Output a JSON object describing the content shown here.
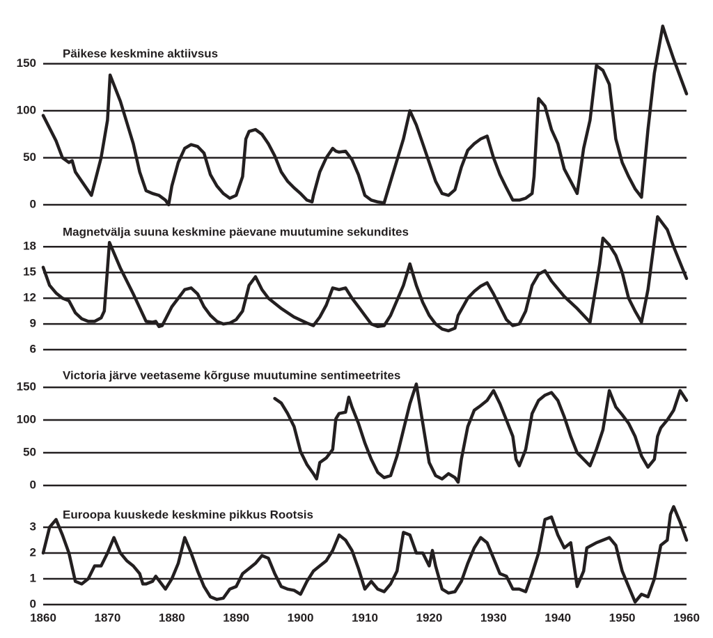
{
  "chart_data": [
    {
      "type": "line",
      "title": "Päikese keskmine aktiivsus",
      "color": "#231f20",
      "xlim": [
        1860,
        1960
      ],
      "ylim": [
        0,
        200
      ],
      "yticks": [
        0,
        50,
        100,
        150
      ],
      "grid": true,
      "x": [
        1860,
        1862,
        1863,
        1864,
        1864.5,
        1865,
        1866,
        1867,
        1867.5,
        1869,
        1870,
        1870.4,
        1872,
        1874,
        1875,
        1876,
        1877,
        1878,
        1879,
        1879.5,
        1880,
        1881,
        1882,
        1883,
        1884,
        1885,
        1886,
        1887,
        1888,
        1889,
        1890,
        1891,
        1891.5,
        1892,
        1893,
        1894,
        1895,
        1896,
        1897,
        1898,
        1899,
        1900,
        1901,
        1901.8,
        1902,
        1903,
        1904,
        1905,
        1905.5,
        1906,
        1907,
        1908,
        1909,
        1910,
        1911,
        1912,
        1913,
        1914,
        1916,
        1917,
        1918,
        1919,
        1920,
        1921,
        1922,
        1923,
        1924,
        1925,
        1926,
        1927,
        1928,
        1929,
        1930,
        1931,
        1932,
        1933,
        1934,
        1935,
        1936,
        1936.3,
        1937,
        1938,
        1939,
        1940,
        1941,
        1942,
        1943,
        1944,
        1945,
        1946,
        1947,
        1948,
        1949,
        1950,
        1951,
        1952,
        1953,
        1954,
        1955,
        1956.3,
        1957,
        1958,
        1960
      ],
      "values": [
        95,
        68,
        50,
        45,
        47,
        35,
        25,
        15,
        10,
        50,
        90,
        138,
        110,
        65,
        35,
        15,
        12,
        10,
        5,
        0,
        20,
        45,
        60,
        64,
        62,
        55,
        32,
        20,
        12,
        7,
        10,
        30,
        70,
        78,
        80,
        75,
        65,
        52,
        35,
        25,
        18,
        12,
        5,
        3,
        10,
        35,
        50,
        60,
        57,
        56,
        57,
        48,
        32,
        10,
        5,
        3,
        2,
        25,
        70,
        100,
        85,
        65,
        45,
        25,
        12,
        10,
        16,
        40,
        58,
        65,
        70,
        73,
        50,
        32,
        18,
        5,
        5,
        7,
        12,
        30,
        113,
        105,
        80,
        65,
        38,
        25,
        12,
        60,
        90,
        148,
        143,
        128,
        70,
        45,
        30,
        17,
        8,
        80,
        140,
        190,
        175,
        155,
        118
      ]
    },
    {
      "type": "line",
      "title": "Magnetvälja suuna keskmine päevane muutumine sekundites",
      "color": "#231f20",
      "xlim": [
        1860,
        1960
      ],
      "ylim": [
        6,
        22
      ],
      "yticks": [
        6,
        9,
        12,
        15,
        18
      ],
      "grid": true,
      "x": [
        1860,
        1861,
        1862,
        1863,
        1864,
        1865,
        1866,
        1867,
        1868,
        1869,
        1869.5,
        1870.3,
        1872,
        1874,
        1876,
        1877,
        1877.5,
        1878,
        1878.5,
        1880,
        1882,
        1883,
        1884,
        1885,
        1886,
        1887,
        1888,
        1889,
        1890,
        1891,
        1892,
        1893,
        1894,
        1895,
        1897,
        1899,
        1901,
        1902,
        1903,
        1904,
        1905,
        1906,
        1907,
        1908,
        1909,
        1910,
        1911,
        1912,
        1913,
        1914,
        1916,
        1917,
        1918,
        1919,
        1920,
        1921,
        1922,
        1923,
        1924,
        1924.5,
        1926,
        1927,
        1928,
        1929,
        1930,
        1931,
        1932,
        1933,
        1934,
        1935,
        1936,
        1937,
        1938,
        1939,
        1941,
        1943,
        1945,
        1946.5,
        1947,
        1948,
        1949,
        1950,
        1951,
        1952,
        1953,
        1954,
        1955.5,
        1957,
        1958,
        1960
      ],
      "values": [
        15.6,
        13.5,
        12.6,
        12.0,
        11.7,
        10.3,
        9.6,
        9.3,
        9.3,
        9.7,
        10.5,
        18.5,
        15.5,
        12.5,
        9.3,
        9.2,
        9.3,
        8.7,
        8.8,
        11.0,
        13.0,
        13.2,
        12.5,
        11.0,
        10.0,
        9.3,
        9.0,
        9.1,
        9.5,
        10.5,
        13.5,
        14.5,
        13.0,
        12.0,
        10.8,
        9.8,
        9.1,
        8.8,
        9.8,
        11.2,
        13.2,
        13.0,
        13.2,
        12.0,
        11.0,
        10.0,
        9.0,
        8.7,
        8.8,
        10.0,
        13.5,
        16.0,
        13.5,
        11.5,
        10.0,
        9.0,
        8.4,
        8.2,
        8.5,
        10.0,
        12.0,
        12.8,
        13.4,
        13.8,
        12.5,
        11.0,
        9.5,
        8.8,
        9.0,
        10.5,
        13.5,
        14.8,
        15.2,
        14.0,
        12.2,
        10.8,
        9.2,
        16.0,
        19.0,
        18.2,
        17.0,
        15.0,
        12.0,
        10.5,
        9.2,
        13.0,
        21.5,
        20.0,
        18.0,
        14.3
      ]
    },
    {
      "type": "line",
      "title": "Victoria järve veetaseme kõrguse muutumine sentimeetrites",
      "color": "#231f20",
      "xlim": [
        1860,
        1960
      ],
      "ylim": [
        0,
        165
      ],
      "yticks": [
        0,
        50,
        100,
        150
      ],
      "grid": true,
      "x": [
        1896,
        1897,
        1898,
        1899,
        1900,
        1901,
        1902,
        1902.5,
        1903,
        1904,
        1905,
        1905.5,
        1906,
        1907,
        1907.5,
        1908,
        1909,
        1910,
        1911,
        1912,
        1913,
        1914,
        1915,
        1916,
        1917,
        1918,
        1919,
        1920,
        1921,
        1922,
        1923,
        1924,
        1924.5,
        1925,
        1926,
        1927,
        1928,
        1929,
        1930,
        1931,
        1932,
        1933,
        1933.5,
        1934,
        1935,
        1936,
        1937,
        1938,
        1939,
        1940,
        1941,
        1942,
        1943,
        1944,
        1945,
        1946,
        1947,
        1948,
        1949,
        1950,
        1951,
        1952,
        1953,
        1954,
        1955,
        1955.5,
        1956,
        1957,
        1958,
        1959,
        1960
      ],
      "values": [
        133,
        126,
        110,
        90,
        52,
        32,
        18,
        10,
        35,
        42,
        55,
        102,
        110,
        112,
        135,
        120,
        95,
        65,
        40,
        20,
        12,
        15,
        45,
        85,
        125,
        155,
        95,
        35,
        15,
        10,
        18,
        12,
        5,
        40,
        90,
        115,
        122,
        130,
        145,
        125,
        100,
        75,
        40,
        30,
        55,
        110,
        130,
        138,
        142,
        130,
        105,
        75,
        50,
        40,
        30,
        55,
        85,
        145,
        120,
        108,
        95,
        75,
        45,
        28,
        40,
        75,
        88,
        100,
        115,
        145,
        130
      ]
    },
    {
      "type": "line",
      "title": "Euroopa kuuskede keskmine pikkus Rootsis",
      "color": "#231f20",
      "xlim": [
        1860,
        1960
      ],
      "ylim": [
        0,
        4
      ],
      "yticks": [
        0,
        1,
        2,
        3
      ],
      "grid": true,
      "xticks": [
        1860,
        1870,
        1880,
        1890,
        1900,
        1910,
        1920,
        1930,
        1940,
        1950,
        1960
      ],
      "x": [
        1860,
        1861,
        1862,
        1863,
        1864,
        1865,
        1866,
        1867,
        1868,
        1869,
        1870,
        1871,
        1872,
        1873,
        1874,
        1875,
        1875.5,
        1876,
        1877,
        1877.5,
        1879,
        1880,
        1881,
        1882,
        1883,
        1884,
        1885,
        1886,
        1887,
        1888,
        1889,
        1890,
        1891,
        1892,
        1893,
        1894,
        1895,
        1896,
        1897,
        1898,
        1899,
        1900,
        1901,
        1902,
        1903,
        1904,
        1905,
        1906,
        1907,
        1908,
        1909,
        1910,
        1911,
        1912,
        1913,
        1914,
        1915,
        1916,
        1917,
        1918,
        1919,
        1920,
        1920.5,
        1921,
        1922,
        1923,
        1924,
        1925,
        1926,
        1927,
        1928,
        1929,
        1930,
        1931,
        1932,
        1933,
        1934,
        1935,
        1936,
        1937,
        1938,
        1939,
        1940,
        1941,
        1942,
        1943,
        1944,
        1944.5,
        1946,
        1947,
        1948,
        1949,
        1950,
        1951,
        1952,
        1953,
        1954,
        1955,
        1956,
        1957,
        1957.5,
        1958,
        1959,
        1960
      ],
      "values": [
        2.0,
        3.0,
        3.3,
        2.7,
        2.0,
        0.9,
        0.8,
        1.0,
        1.5,
        1.5,
        2.0,
        2.6,
        2.0,
        1.7,
        1.5,
        1.2,
        0.8,
        0.8,
        0.9,
        1.1,
        0.6,
        1.0,
        1.6,
        2.6,
        2.0,
        1.3,
        0.7,
        0.3,
        0.2,
        0.25,
        0.6,
        0.7,
        1.2,
        1.4,
        1.6,
        1.9,
        1.8,
        1.2,
        0.7,
        0.6,
        0.55,
        0.4,
        0.9,
        1.3,
        1.5,
        1.7,
        2.1,
        2.7,
        2.5,
        2.1,
        1.4,
        0.6,
        0.9,
        0.6,
        0.5,
        0.8,
        1.3,
        2.8,
        2.7,
        2.0,
        2.0,
        1.5,
        2.1,
        1.5,
        0.6,
        0.45,
        0.5,
        0.9,
        1.6,
        2.2,
        2.6,
        2.4,
        1.8,
        1.2,
        1.1,
        0.6,
        0.6,
        0.5,
        1.2,
        2.0,
        3.3,
        3.4,
        2.7,
        2.2,
        2.4,
        0.7,
        1.3,
        2.2,
        2.4,
        2.5,
        2.6,
        2.3,
        1.3,
        0.7,
        0.1,
        0.4,
        0.3,
        1.0,
        2.3,
        2.5,
        3.5,
        3.8,
        3.2,
        2.5
      ]
    }
  ]
}
